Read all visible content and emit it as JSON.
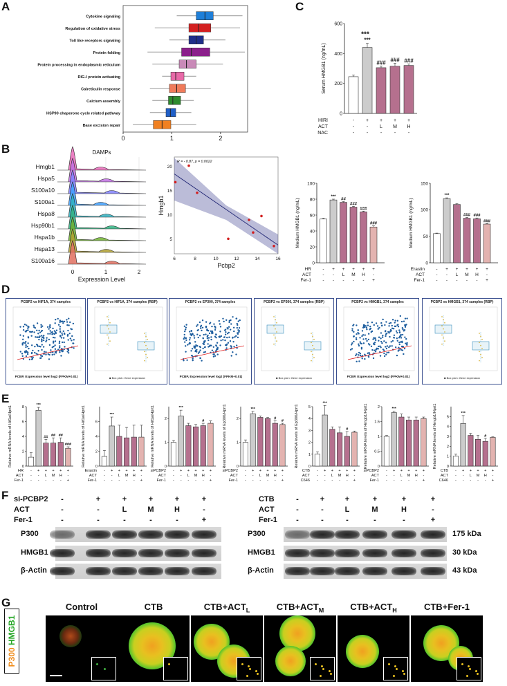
{
  "panels": {
    "A": "A",
    "B": "B",
    "C": "C",
    "D": "D",
    "E": "E",
    "F": "F",
    "G": "G"
  },
  "panelA": {
    "pathways": [
      "Cytokine signaling",
      "Regulation of oxidative stress",
      "Toll like receptors signaling",
      "Protein folding",
      "Protein processing in endoplasmic reticulum",
      "RIG-I protein activating",
      "Calreticulin response",
      "Calcium assembly",
      "HSP90 chaperone cycle related pathway",
      "Base excision repair"
    ],
    "colors": [
      "#1f7fd8",
      "#d42020",
      "#1f2f8a",
      "#8b1f8b",
      "#c98ab8",
      "#e86aa8",
      "#f07b5a",
      "#2e8b2e",
      "#1f5fc8",
      "#f08020"
    ],
    "ticks": [
      "0",
      "1",
      "2"
    ]
  },
  "chart_data": [
    {
      "type": "box",
      "id": "A",
      "title": "",
      "xlim": [
        0,
        2.3
      ],
      "ticks": [
        0,
        1,
        2
      ],
      "categories": [
        "Cytokine signaling",
        "Regulation of oxidative stress",
        "Toll like receptors signaling",
        "Protein folding",
        "Protein processing in endoplasmic reticulum",
        "RIG-I protein activating",
        "Calreticulin response",
        "Calcium assembly",
        "HSP90 chaperone cycle related pathway",
        "Base excision repair"
      ],
      "boxes": [
        {
          "min": 1.1,
          "q1": 1.5,
          "median": 1.68,
          "q3": 1.85,
          "max": 2.45
        },
        {
          "min": 0.65,
          "q1": 1.35,
          "median": 1.55,
          "q3": 1.8,
          "max": 2.4
        },
        {
          "min": 0.95,
          "q1": 1.35,
          "median": 1.5,
          "q3": 1.65,
          "max": 2.1
        },
        {
          "min": 0.5,
          "q1": 1.2,
          "median": 1.4,
          "q3": 1.78,
          "max": 2.5
        },
        {
          "min": 0.6,
          "q1": 1.15,
          "median": 1.3,
          "q3": 1.5,
          "max": 2.05
        },
        {
          "min": 0.8,
          "q1": 0.98,
          "median": 1.08,
          "q3": 1.25,
          "max": 1.5
        },
        {
          "min": 0.55,
          "q1": 0.95,
          "median": 1.1,
          "q3": 1.28,
          "max": 1.8
        },
        {
          "min": 0.6,
          "q1": 0.93,
          "median": 1.02,
          "q3": 1.18,
          "max": 1.45
        },
        {
          "min": 0.55,
          "q1": 0.88,
          "median": 0.97,
          "q3": 1.08,
          "max": 1.4
        },
        {
          "min": 0.2,
          "q1": 0.62,
          "median": 0.8,
          "q3": 0.98,
          "max": 1.5
        }
      ]
    },
    {
      "type": "bar",
      "id": "C",
      "ylabel": "Serum HMGB1 (ng/mL)",
      "ylim": [
        0,
        600
      ],
      "yticks": [
        0,
        200,
        400,
        600
      ],
      "values": [
        245,
        440,
        305,
        315,
        320
      ],
      "errors": [
        12,
        28,
        12,
        20,
        10
      ],
      "colors": [
        "#ffffff",
        "#cccccc",
        "#b5708e",
        "#b5708e",
        "#b5708e"
      ],
      "sig": [
        "",
        "***",
        "###",
        "###",
        "###"
      ],
      "rows": [
        {
          "label": "HIRI",
          "vals": [
            "-",
            "+",
            "+",
            "+",
            "+"
          ]
        },
        {
          "label": "ACT",
          "vals": [
            "-",
            "-",
            "L",
            "M",
            "H"
          ]
        },
        {
          "label": "NAC",
          "vals": [
            "-",
            "-",
            "-",
            "-",
            "-"
          ]
        }
      ]
    },
    {
      "type": "scatter",
      "id": "B-scatter",
      "xlabel": "Pcbp2",
      "ylabel": "Hmgb1",
      "annotation": "R = - 0.87, p = 0.0022",
      "xlim": [
        6,
        16
      ],
      "ylim": [
        2,
        22
      ],
      "xticks": [
        6,
        8,
        10,
        12,
        14,
        16
      ],
      "yticks": [
        5,
        10,
        15,
        20
      ],
      "x": [
        6.1,
        7.4,
        8.2,
        11.2,
        13.2,
        13.6,
        14.4,
        15.6
      ],
      "y": [
        16.8,
        20.2,
        14.6,
        5.1,
        9.0,
        6.4,
        9.8,
        3.6
      ]
    },
    {
      "type": "bar",
      "id": "B-bar1",
      "ylabel": "Medium HMGB1 (ng/mL)",
      "ylim": [
        0,
        100
      ],
      "yticks": [
        0,
        20,
        40,
        60,
        80,
        100
      ],
      "values": [
        55,
        79,
        76,
        70,
        64,
        45
      ],
      "errors": [
        1,
        1,
        1,
        1,
        1,
        1.5
      ],
      "colors": [
        "#ffffff",
        "#cccccc",
        "#b5708e",
        "#b5708e",
        "#b5708e",
        "#e3b3b0"
      ],
      "sig": [
        "",
        "***",
        "##",
        "###",
        "###",
        "###"
      ],
      "rows": [
        {
          "label": "HR",
          "vals": [
            "-",
            "+",
            "+",
            "+",
            "+",
            "+"
          ]
        },
        {
          "label": "ACT",
          "vals": [
            "-",
            "-",
            "L",
            "M",
            "H",
            "-"
          ]
        },
        {
          "label": "Fer-1",
          "vals": [
            "-",
            "-",
            "-",
            "-",
            "-",
            "+"
          ]
        }
      ]
    },
    {
      "type": "bar",
      "id": "B-bar2",
      "ylabel": "Medium HMGB1 (ng/mL)",
      "ylim": [
        0,
        150
      ],
      "yticks": [
        0,
        50,
        100,
        150
      ],
      "values": [
        55,
        121,
        110,
        84,
        83,
        73
      ],
      "errors": [
        1,
        1.5,
        1.5,
        1.5,
        1.5,
        1
      ],
      "colors": [
        "#ffffff",
        "#cccccc",
        "#b5708e",
        "#b5708e",
        "#b5708e",
        "#e3b3b0"
      ],
      "sig": [
        "",
        "***",
        "",
        "###",
        "###",
        "###"
      ],
      "rows": [
        {
          "label": "Erastin",
          "vals": [
            "-",
            "+",
            "+",
            "+",
            "+",
            "+"
          ]
        },
        {
          "label": "ACT",
          "vals": [
            "-",
            "-",
            "L",
            "M",
            "H",
            "-"
          ]
        },
        {
          "label": "Fer-1",
          "vals": [
            "-",
            "-",
            "-",
            "-",
            "-",
            "+"
          ]
        }
      ]
    },
    {
      "type": "bar",
      "id": "E1",
      "ylabel": "Relative mRNA levels of Hif1a/Hprt1",
      "ylim": [
        0,
        8
      ],
      "yticks": [
        0,
        2,
        4,
        6,
        8
      ],
      "values": [
        1.2,
        7.5,
        3.1,
        3.1,
        3.2,
        2.4
      ],
      "errors": [
        0.6,
        0.4,
        0.5,
        0.7,
        0.6,
        0.2
      ],
      "colors": [
        "#ffffff",
        "#cccccc",
        "#b5708e",
        "#b5708e",
        "#b5708e",
        "#e3b3b0"
      ],
      "sig": [
        "",
        "***",
        "##",
        "##",
        "##",
        "###"
      ],
      "rows": [
        {
          "label": "HR",
          "vals": [
            "-",
            "+",
            "+",
            "+",
            "+",
            "+"
          ]
        },
        {
          "label": "ACT",
          "vals": [
            "-",
            "-",
            "L",
            "M",
            "H",
            "-"
          ]
        },
        {
          "label": "Fer-1",
          "vals": [
            "-",
            "-",
            "-",
            "-",
            "-",
            "+"
          ]
        }
      ]
    },
    {
      "type": "bar",
      "id": "E2",
      "ylabel": "Relative mRNA levels of Hif1a/Hprt1",
      "ylim": [
        0,
        8
      ],
      "yticks": [
        0,
        2,
        4,
        6
      ],
      "values": [
        1.3,
        5.4,
        4.0,
        3.8,
        3.9,
        3.9
      ],
      "errors": [
        0.8,
        1.2,
        1.5,
        1.4,
        1.6,
        1.6
      ],
      "colors": [
        "#ffffff",
        "#cccccc",
        "#b5708e",
        "#b5708e",
        "#b5708e",
        "#e3b3b0"
      ],
      "sig": [
        "",
        "***",
        "",
        "",
        "",
        ""
      ],
      "rows": [
        {
          "label": "Erastin",
          "vals": [
            "-",
            "+",
            "+",
            "+",
            "+",
            "+"
          ]
        },
        {
          "label": "ACT",
          "vals": [
            "-",
            "-",
            "L",
            "M",
            "H",
            "-"
          ]
        },
        {
          "label": "Fer-1",
          "vals": [
            "-",
            "-",
            "-",
            "-",
            "-",
            "+"
          ]
        }
      ]
    },
    {
      "type": "bar",
      "id": "E3",
      "ylabel": "Relative mRNA levels of Hif1a/Hprt1",
      "ylim": [
        0,
        2.5
      ],
      "yticks": [
        0,
        1,
        2
      ],
      "values": [
        1.0,
        2.1,
        1.7,
        1.65,
        1.7,
        1.8
      ],
      "errors": [
        0.08,
        0.25,
        0.1,
        0.1,
        0.1,
        0.1
      ],
      "colors": [
        "#ffffff",
        "#cccccc",
        "#b5708e",
        "#b5708e",
        "#b5708e",
        "#e3b3b0"
      ],
      "sig": [
        "",
        "***",
        "",
        "",
        "#",
        ""
      ],
      "rows": [
        {
          "label": "siPCBP2",
          "vals": [
            "-",
            "+",
            "+",
            "+",
            "+",
            "+"
          ]
        },
        {
          "label": "ACT",
          "vals": [
            "-",
            "-",
            "L",
            "M",
            "H",
            "-"
          ]
        },
        {
          "label": "Fer-1",
          "vals": [
            "-",
            "-",
            "-",
            "-",
            "-",
            "+"
          ]
        }
      ]
    },
    {
      "type": "bar",
      "id": "E4",
      "ylabel": "Relative mRNA levels of Ep300/Hprt1",
      "ylim": [
        0,
        2.5
      ],
      "yticks": [
        0,
        1,
        2
      ],
      "values": [
        1.0,
        2.2,
        2.05,
        2.0,
        1.8,
        1.75
      ],
      "errors": [
        0.1,
        0.1,
        0.05,
        0.05,
        0.1,
        0.05
      ],
      "colors": [
        "#ffffff",
        "#cccccc",
        "#b5708e",
        "#b5708e",
        "#b5708e",
        "#e3b3b0"
      ],
      "sig": [
        "",
        "***",
        "",
        "",
        "#",
        "#"
      ],
      "rows": [
        {
          "label": "siPCBP2",
          "vals": [
            "-",
            "+",
            "+",
            "+",
            "+",
            "+"
          ]
        },
        {
          "label": "ACT",
          "vals": [
            "-",
            "-",
            "L",
            "M",
            "H",
            "-"
          ]
        },
        {
          "label": "Fer-1",
          "vals": [
            "-",
            "-",
            "-",
            "-",
            "-",
            "+"
          ]
        }
      ]
    },
    {
      "type": "bar",
      "id": "E5",
      "ylabel": "Relative mRNA levels of Ep300/Hprt1",
      "ylim": [
        0,
        5
      ],
      "yticks": [
        0,
        1,
        2,
        3,
        4,
        5
      ],
      "values": [
        1.0,
        4.3,
        3.1,
        2.8,
        2.5,
        2.85
      ],
      "errors": [
        0.2,
        0.8,
        0.2,
        0.5,
        0.4,
        0.1
      ],
      "colors": [
        "#ffffff",
        "#cccccc",
        "#b5708e",
        "#b5708e",
        "#b5708e",
        "#e3b3b0"
      ],
      "sig": [
        "",
        "***",
        "",
        "",
        "#",
        ""
      ],
      "rows": [
        {
          "label": "CTB",
          "vals": [
            "-",
            "+",
            "+",
            "+",
            "+",
            "+"
          ]
        },
        {
          "label": "ACT",
          "vals": [
            "-",
            "-",
            "L",
            "M",
            "H",
            "-"
          ]
        },
        {
          "label": "C646",
          "vals": [
            "-",
            "-",
            "-",
            "-",
            "-",
            "+"
          ]
        }
      ]
    },
    {
      "type": "bar",
      "id": "E6",
      "ylabel": "Relative mRNA levels of Hmgb1/Hprt1",
      "ylim": [
        0,
        2.0
      ],
      "yticks": [
        0,
        0.5,
        1.0,
        1.5,
        2.0
      ],
      "values": [
        1.0,
        1.8,
        1.65,
        1.55,
        1.55,
        1.6
      ],
      "errors": [
        0.03,
        0.05,
        0.1,
        0.1,
        0.1,
        0.05
      ],
      "colors": [
        "#ffffff",
        "#cccccc",
        "#b5708e",
        "#b5708e",
        "#b5708e",
        "#e3b3b0"
      ],
      "sig": [
        "",
        "***",
        "",
        "",
        "",
        ""
      ],
      "rows": [
        {
          "label": "siPCBP2",
          "vals": [
            "-",
            "+",
            "+",
            "+",
            "+",
            "+"
          ]
        },
        {
          "label": "ACT",
          "vals": [
            "-",
            "-",
            "L",
            "M",
            "H",
            "-"
          ]
        },
        {
          "label": "Fer-1",
          "vals": [
            "-",
            "-",
            "-",
            "-",
            "-",
            "+"
          ]
        }
      ]
    },
    {
      "type": "bar",
      "id": "E7",
      "ylabel": "Relative mRNA levels of Hmgb1/Hprt1",
      "ylim": [
        0,
        6
      ],
      "yticks": [
        0,
        1,
        2,
        3,
        4,
        5
      ],
      "values": [
        1.0,
        4.3,
        3.1,
        2.7,
        2.5,
        2.9
      ],
      "errors": [
        0.2,
        0.8,
        0.2,
        0.4,
        0.3,
        0.05
      ],
      "colors": [
        "#ffffff",
        "#cccccc",
        "#b5708e",
        "#b5708e",
        "#b5708e",
        "#e3b3b0"
      ],
      "sig": [
        "",
        "***",
        "",
        "",
        "#",
        ""
      ],
      "rows": [
        {
          "label": "CTB",
          "vals": [
            "-",
            "+",
            "+",
            "+",
            "+",
            "+"
          ]
        },
        {
          "label": "ACT",
          "vals": [
            "-",
            "-",
            "L",
            "M",
            "H",
            "-"
          ]
        },
        {
          "label": "C646",
          "vals": [
            "-",
            "-",
            "-",
            "-",
            "-",
            "+"
          ]
        }
      ]
    }
  ],
  "ridge": {
    "title": "DAMPs",
    "xlabel": "Expression Level",
    "ticks": [
      "0",
      "1",
      "2"
    ],
    "genes": [
      "Hmgb1",
      "Hspa5",
      "S100a10",
      "S100a1",
      "Hspa8",
      "Hsp90b1",
      "Hspa1b",
      "Hspa13",
      "S100a16"
    ],
    "colors": [
      "#e86ab8",
      "#c070e0",
      "#8080ff",
      "#40a0ff",
      "#30b0c0",
      "#30b080",
      "#70b030",
      "#b0a030",
      "#e07060"
    ]
  },
  "panelD": {
    "titles": [
      "PCBP2 vs HIF1A, 374 samples",
      "PCBP2 vs HIF1A, 374 samples (RBP)",
      "PCBP2 vs EP300, 374 samples",
      "PCBP2 vs EP300, 374 samples (RBP)",
      "PCBP2 vs HMGB1, 374 samples",
      "PCBP2 vs HMGB1, 374 samples (RBP)"
    ],
    "xlabel": "PCBP, Expression level log2 (FPKM+0.01)",
    "legend": [
      "Box plot",
      "Gene expression"
    ]
  },
  "panelF": {
    "left_rows": [
      {
        "label": "si-PCBP2",
        "vals": [
          "-",
          "+",
          "+",
          "+",
          "+",
          "+"
        ]
      },
      {
        "label": "ACT",
        "vals": [
          "-",
          "-",
          "L",
          "M",
          "H",
          "-"
        ]
      },
      {
        "label": "Fer-1",
        "vals": [
          "-",
          "-",
          "-",
          "-",
          "-",
          "+"
        ]
      }
    ],
    "right_rows": [
      {
        "label": "CTB",
        "vals": [
          "-",
          "+",
          "+",
          "+",
          "+",
          "+"
        ]
      },
      {
        "label": "ACT",
        "vals": [
          "-",
          "-",
          "L",
          "M",
          "H",
          "-"
        ]
      },
      {
        "label": "Fer-1",
        "vals": [
          "-",
          "-",
          "-",
          "-",
          "-",
          "+"
        ]
      }
    ],
    "blots": [
      "P300",
      "HMGB1",
      "β-Actin"
    ],
    "sizes": [
      "175 kDa",
      "30 kDa",
      "43 kDa"
    ]
  },
  "panelG": {
    "stain_red": "P300",
    "stain_green": "HMGB1",
    "conditions": [
      {
        "base": "Control",
        "sub": ""
      },
      {
        "base": "CTB",
        "sub": ""
      },
      {
        "base": "CTB+ACT",
        "sub": "L"
      },
      {
        "base": "CTB+ACT",
        "sub": "M"
      },
      {
        "base": "CTB+ACT",
        "sub": "H"
      },
      {
        "base": "CTB+Fer-1",
        "sub": ""
      }
    ]
  }
}
